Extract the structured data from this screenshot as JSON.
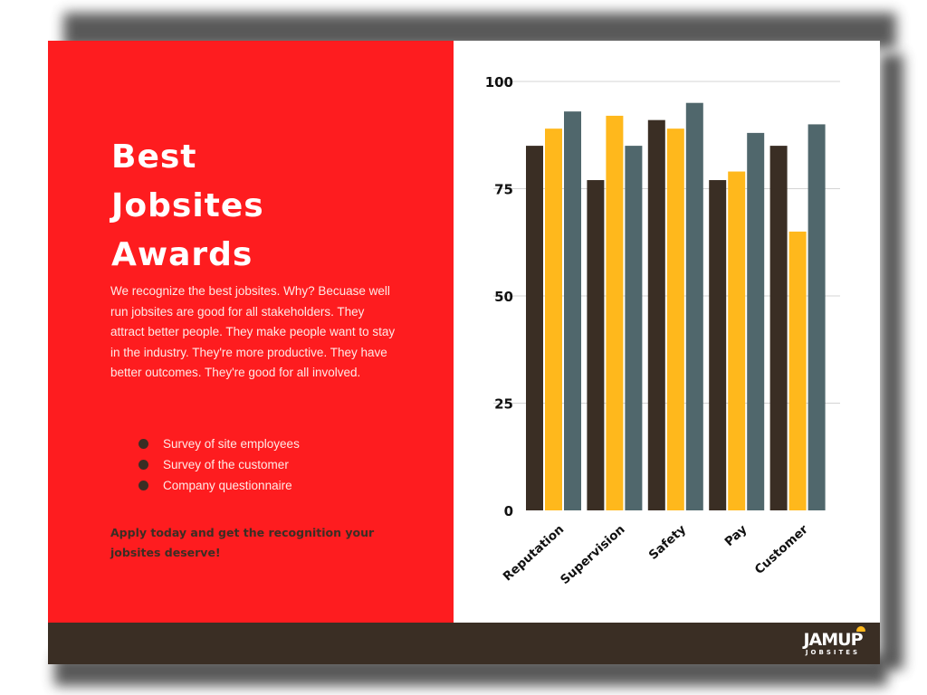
{
  "title_lines": [
    "Best",
    "Jobsites",
    "Awards"
  ],
  "intro_text": "We recognize the best jobsites. Why? Becuase well run jobsites are good for all stakeholders. They attract better people. They make people want to stay in the industry. They're more productive. They have better outcomes. They're good for all involved.",
  "criteria": [
    "Survey of site employees",
    "Survey of the customer",
    "Company questionnaire"
  ],
  "cta_text": "Apply today and get the recognition your jobsites deserve!",
  "logo": {
    "word": "JAMUP",
    "sub": "JOBSITES",
    "icon": "hard-hat-icon"
  },
  "colors": {
    "accent": "#fe1c1f",
    "dark": "#3a2e24",
    "yellow": "#ffb81c",
    "slate": "#50676c"
  },
  "chart_data": {
    "type": "bar",
    "title": "",
    "xlabel": "",
    "ylabel": "",
    "categories": [
      "Reputation",
      "Supervision",
      "Safety",
      "Pay",
      "Customer"
    ],
    "series": [
      {
        "color": "#3a2e24",
        "values": [
          85,
          77,
          91,
          77,
          85
        ]
      },
      {
        "color": "#ffb81c",
        "values": [
          89,
          92,
          89,
          79,
          65
        ]
      },
      {
        "color": "#50676c",
        "values": [
          93,
          85,
          95,
          88,
          90
        ]
      }
    ],
    "ylim": [
      0,
      100
    ],
    "yticks": [
      0,
      25,
      50,
      75,
      100
    ],
    "grid": true,
    "legend": "none"
  }
}
